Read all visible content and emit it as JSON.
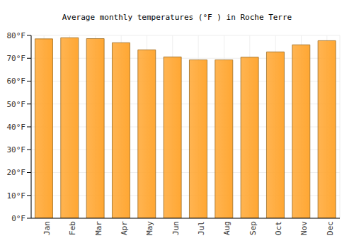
{
  "chart_data": {
    "type": "bar",
    "title": "Average monthly temperatures (°F ) in Roche Terre",
    "categories": [
      "Jan",
      "Feb",
      "Mar",
      "Apr",
      "May",
      "Jun",
      "Jul",
      "Aug",
      "Sep",
      "Oct",
      "Nov",
      "Dec"
    ],
    "values": [
      78.5,
      79,
      78.6,
      76.8,
      73.7,
      70.6,
      69.3,
      69.3,
      70.5,
      72.8,
      75.9,
      77.7
    ],
    "color": "#ffa733",
    "ylim": [
      0,
      80
    ],
    "yticks": [
      {
        "value": 0,
        "label": "0°F"
      },
      {
        "value": 10,
        "label": "10°F"
      },
      {
        "value": 20,
        "label": "20°F"
      },
      {
        "value": 30,
        "label": "30°F"
      },
      {
        "value": 40,
        "label": "40°F"
      },
      {
        "value": 50,
        "label": "50°F"
      },
      {
        "value": 60,
        "label": "60°F"
      },
      {
        "value": 70,
        "label": "70°F"
      },
      {
        "value": 80,
        "label": "80°F"
      }
    ],
    "grid": true
  }
}
